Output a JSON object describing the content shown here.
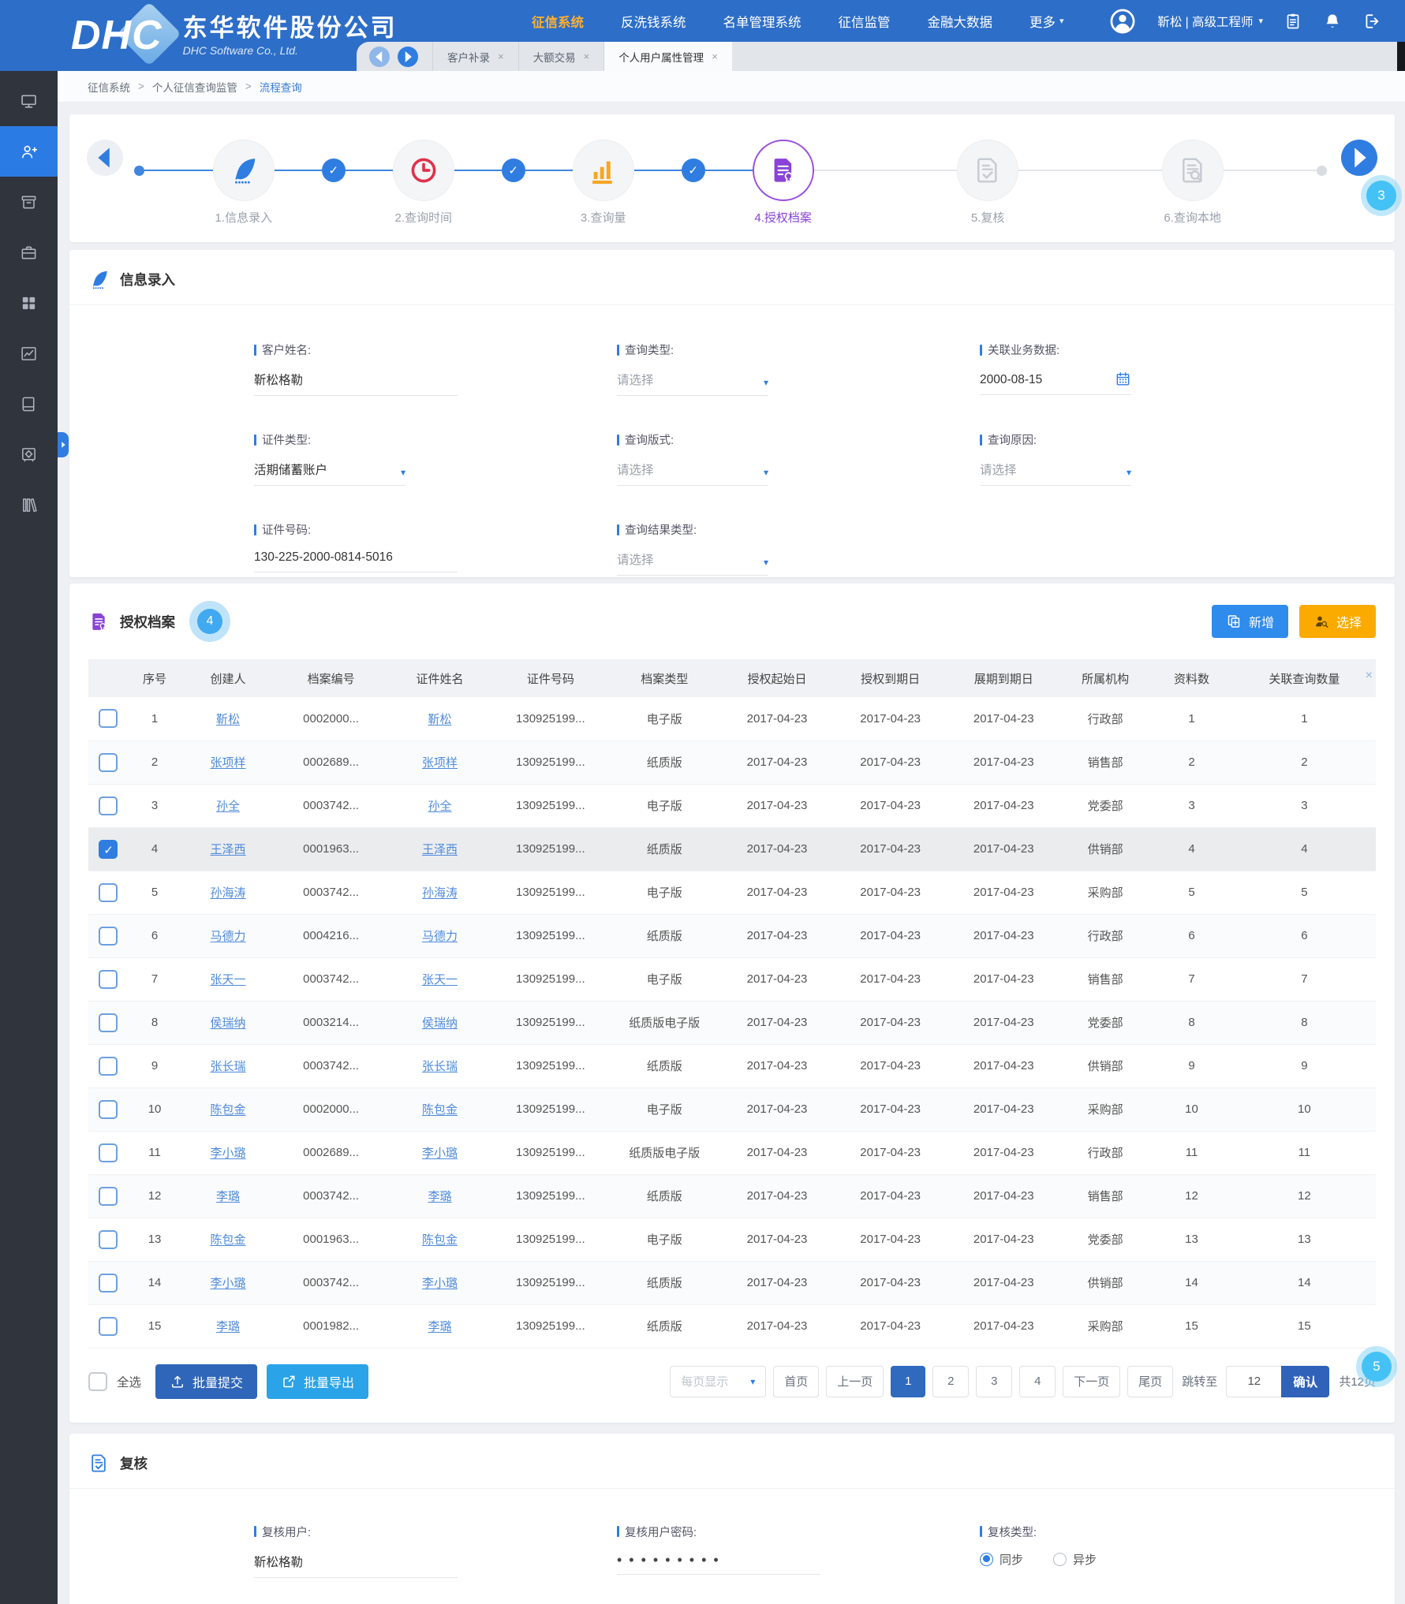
{
  "colors": {
    "header_blue": "#2d6ec8",
    "accent_blue": "#2f7de1",
    "nav_active_orange": "#ffb02e",
    "step_active_purple": "#8a42d8",
    "step_clock_red": "#e0314b",
    "step_chart_orange": "#f6a623",
    "hotspot_cyan": "#45c2f5",
    "add_button_blue": "#2f8bec",
    "choose_button_orange": "#fbaa00",
    "submit_button_blue": "#2f66ba",
    "export_button_cyan": "#2aa3e8",
    "link_blue": "#4f8bdb",
    "sidebar_dark": "#30343d"
  },
  "header": {
    "logo": "DHC",
    "company_cn": "东华软件股份公司",
    "company_en": "DHC Software Co., Ltd.",
    "nav_items": [
      {
        "label": "征信系统",
        "active": true
      },
      {
        "label": "反洗钱系统"
      },
      {
        "label": "名单管理系统"
      },
      {
        "label": "征信监管"
      },
      {
        "label": "金融大数据"
      },
      {
        "label": "更多",
        "caret": "▾"
      }
    ],
    "user_display": "靳松 | 高级工程师",
    "user_caret": "▾"
  },
  "tabstrip": {
    "tabs": [
      {
        "label": "客户补录",
        "close": "×"
      },
      {
        "label": "大额交易",
        "close": "×"
      },
      {
        "label": "个人用户属性管理",
        "close": "×",
        "active": true
      }
    ]
  },
  "breadcrumb": {
    "separator": ">",
    "items": [
      {
        "label": "征信系统"
      },
      {
        "label": "个人征信查询监管"
      },
      {
        "label": "流程查询",
        "current": true
      }
    ]
  },
  "stepper": {
    "steps": [
      {
        "label": "1.信息录入",
        "icon": "feather-icon",
        "state": "done",
        "connector": "start"
      },
      {
        "label": "2.查询时间",
        "icon": "clock-icon",
        "state": "done",
        "connector": "check"
      },
      {
        "label": "3.查询量",
        "icon": "bar-chart-icon",
        "state": "done",
        "connector": "check"
      },
      {
        "label": "4.授权档案",
        "icon": "doc-seal-icon",
        "state": "active",
        "connector": "check"
      },
      {
        "label": "5.复核",
        "icon": "doc-check-icon",
        "state": "pending",
        "connector": "gray"
      },
      {
        "label": "6.查询本地",
        "icon": "doc-search-icon",
        "state": "pending",
        "connector": "gray"
      }
    ]
  },
  "info_section": {
    "title": "信息录入",
    "fields": [
      {
        "label": "客户姓名:",
        "value": "靳松格勒",
        "text": true
      },
      {
        "label": "查询类型:",
        "value": "请选择",
        "select": true,
        "placeholder": true
      },
      {
        "label": "关联业务数据:",
        "value": "2000-08-15",
        "date": true
      },
      {
        "label": "证件类型:",
        "value": "活期储蓄账户",
        "select": true
      },
      {
        "label": "查询版式:",
        "value": "请选择",
        "select": true,
        "placeholder": true
      },
      {
        "label": "查询原因:",
        "value": "请选择",
        "select": true,
        "placeholder": true
      },
      {
        "label": "证件号码:",
        "value": "130-225-2000-0814-5016",
        "text": true
      },
      {
        "label": "查询结果类型:",
        "value": "请选择",
        "select": true,
        "placeholder": true
      },
      {
        "empty": true
      }
    ]
  },
  "archive_section": {
    "title": "授权档案",
    "add_button": "新增",
    "choose_button": "选择",
    "table": {
      "header_close": "×",
      "headers": [
        "序号",
        "创建人",
        "档案编号",
        "证件姓名",
        "证件号码",
        "档案类型",
        "授权起始日",
        "授权到期日",
        "展期到期日",
        "所属机构",
        "资料数",
        "关联查询数量"
      ],
      "rows": [
        {
          "idx": "1",
          "creator": "靳松",
          "archive_no": "0002000...",
          "cert_name": "靳松",
          "cert_no": "130925199...",
          "type": "电子版",
          "auth_start": "2017-04-23",
          "auth_end": "2017-04-23",
          "extend_end": "2017-04-23",
          "org": "行政部",
          "docs": "1",
          "related": "1"
        },
        {
          "idx": "2",
          "creator": "张项样",
          "archive_no": "0002689...",
          "cert_name": "张项样",
          "cert_no": "130925199...",
          "type": "纸质版",
          "auth_start": "2017-04-23",
          "auth_end": "2017-04-23",
          "extend_end": "2017-04-23",
          "org": "销售部",
          "docs": "2",
          "related": "2"
        },
        {
          "idx": "3",
          "creator": "孙全",
          "archive_no": "0003742...",
          "cert_name": "孙全",
          "cert_no": "130925199...",
          "type": "电子版",
          "auth_start": "2017-04-23",
          "auth_end": "2017-04-23",
          "extend_end": "2017-04-23",
          "org": "党委部",
          "docs": "3",
          "related": "3"
        },
        {
          "idx": "4",
          "creator": "王泽西",
          "archive_no": "0001963...",
          "cert_name": "王泽西",
          "cert_no": "130925199...",
          "type": "纸质版",
          "auth_start": "2017-04-23",
          "auth_end": "2017-04-23",
          "extend_end": "2017-04-23",
          "org": "供销部",
          "docs": "4",
          "related": "4",
          "checked": true
        },
        {
          "idx": "5",
          "creator": "孙海涛",
          "archive_no": "0003742...",
          "cert_name": "孙海涛",
          "cert_no": "130925199...",
          "type": "电子版",
          "auth_start": "2017-04-23",
          "auth_end": "2017-04-23",
          "extend_end": "2017-04-23",
          "org": "采购部",
          "docs": "5",
          "related": "5"
        },
        {
          "idx": "6",
          "creator": "马德力",
          "archive_no": "0004216...",
          "cert_name": "马德力",
          "cert_no": "130925199...",
          "type": "纸质版",
          "auth_start": "2017-04-23",
          "auth_end": "2017-04-23",
          "extend_end": "2017-04-23",
          "org": "行政部",
          "docs": "6",
          "related": "6"
        },
        {
          "idx": "7",
          "creator": "张天一",
          "archive_no": "0003742...",
          "cert_name": "张天一",
          "cert_no": "130925199...",
          "type": "电子版",
          "auth_start": "2017-04-23",
          "auth_end": "2017-04-23",
          "extend_end": "2017-04-23",
          "org": "销售部",
          "docs": "7",
          "related": "7"
        },
        {
          "idx": "8",
          "creator": "侯瑞纳",
          "archive_no": "0003214...",
          "cert_name": "侯瑞纳",
          "cert_no": "130925199...",
          "type": "纸质版电子版",
          "auth_start": "2017-04-23",
          "auth_end": "2017-04-23",
          "extend_end": "2017-04-23",
          "org": "党委部",
          "docs": "8",
          "related": "8"
        },
        {
          "idx": "9",
          "creator": "张长瑞",
          "archive_no": "0003742...",
          "cert_name": "张长瑞",
          "cert_no": "130925199...",
          "type": "纸质版",
          "auth_start": "2017-04-23",
          "auth_end": "2017-04-23",
          "extend_end": "2017-04-23",
          "org": "供销部",
          "docs": "9",
          "related": "9"
        },
        {
          "idx": "10",
          "creator": "陈包金",
          "archive_no": "0002000...",
          "cert_name": "陈包金",
          "cert_no": "130925199...",
          "type": "电子版",
          "auth_start": "2017-04-23",
          "auth_end": "2017-04-23",
          "extend_end": "2017-04-23",
          "org": "采购部",
          "docs": "10",
          "related": "10"
        },
        {
          "idx": "11",
          "creator": "李小璐",
          "archive_no": "0002689...",
          "cert_name": "李小璐",
          "cert_no": "130925199...",
          "type": "纸质版电子版",
          "auth_start": "2017-04-23",
          "auth_end": "2017-04-23",
          "extend_end": "2017-04-23",
          "org": "行政部",
          "docs": "11",
          "related": "11"
        },
        {
          "idx": "12",
          "creator": "李璐",
          "archive_no": "0003742...",
          "cert_name": "李璐",
          "cert_no": "130925199...",
          "type": "纸质版",
          "auth_start": "2017-04-23",
          "auth_end": "2017-04-23",
          "extend_end": "2017-04-23",
          "org": "销售部",
          "docs": "12",
          "related": "12"
        },
        {
          "idx": "13",
          "creator": "陈包金",
          "archive_no": "0001963...",
          "cert_name": "陈包金",
          "cert_no": "130925199...",
          "type": "电子版",
          "auth_start": "2017-04-23",
          "auth_end": "2017-04-23",
          "extend_end": "2017-04-23",
          "org": "党委部",
          "docs": "13",
          "related": "13"
        },
        {
          "idx": "14",
          "creator": "李小璐",
          "archive_no": "0003742...",
          "cert_name": "李小璐",
          "cert_no": "130925199...",
          "type": "纸质版",
          "auth_start": "2017-04-23",
          "auth_end": "2017-04-23",
          "extend_end": "2017-04-23",
          "org": "供销部",
          "docs": "14",
          "related": "14"
        },
        {
          "idx": "15",
          "creator": "李璐",
          "archive_no": "0001982...",
          "cert_name": "李璐",
          "cert_no": "130925199...",
          "type": "纸质版",
          "auth_start": "2017-04-23",
          "auth_end": "2017-04-23",
          "extend_end": "2017-04-23",
          "org": "采购部",
          "docs": "15",
          "related": "15"
        }
      ]
    },
    "footer": {
      "select_all": "全选",
      "batch_submit": "批量提交",
      "batch_export": "批量导出",
      "page_size_label": "每页显示",
      "first": "首页",
      "prev": "上一页",
      "pages": [
        {
          "label": "1",
          "active": true
        },
        {
          "label": "2"
        },
        {
          "label": "3"
        },
        {
          "label": "4"
        }
      ],
      "next": "下一页",
      "last": "尾页",
      "jump_label": "跳转至",
      "jump_value": "12",
      "confirm": "确认",
      "total": "共12页"
    }
  },
  "review_section": {
    "title": "复核",
    "user_label": "复核用户:",
    "user_value": "靳松格勒",
    "password_label": "复核用户密码:",
    "password_masked": "•••••••••",
    "type_label": "复核类型:",
    "options": [
      {
        "label": "同步",
        "selected": true
      },
      {
        "label": "异步"
      }
    ]
  },
  "sidebar": {
    "items": [
      {
        "icon": "monitor-icon"
      },
      {
        "icon": "user-plus-icon",
        "active": true
      },
      {
        "icon": "archive-icon"
      },
      {
        "icon": "briefcase-icon"
      },
      {
        "icon": "grid-icon"
      },
      {
        "icon": "chart-line-icon"
      },
      {
        "icon": "book-icon"
      },
      {
        "icon": "safe-icon"
      },
      {
        "icon": "books-icon"
      }
    ]
  },
  "hotspots": {
    "stepper": "3",
    "archive": "4",
    "pagination": "5"
  }
}
